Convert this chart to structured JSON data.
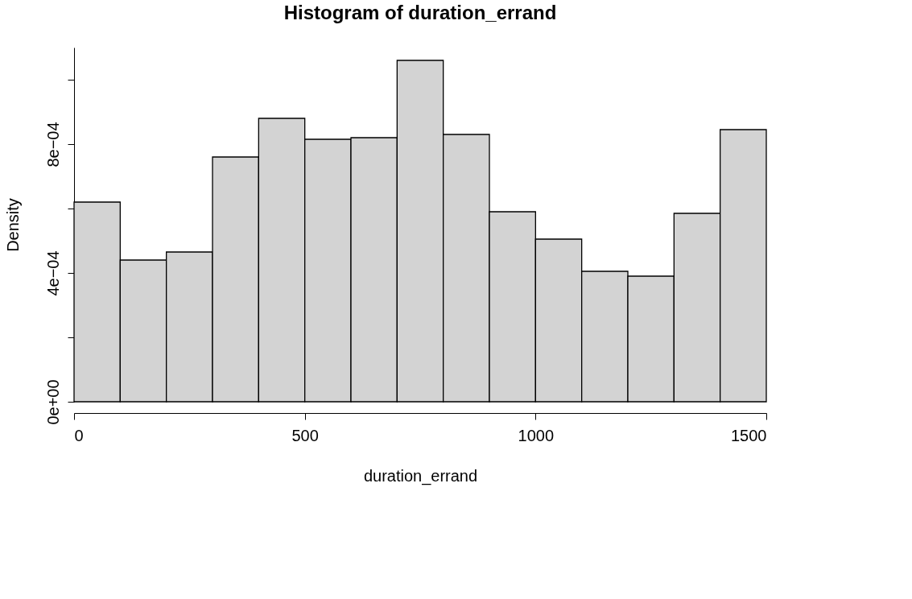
{
  "chart_data": {
    "type": "histogram",
    "title": "Histogram of duration_errand",
    "xlabel": "duration_errand",
    "ylabel": "Density",
    "bins": [
      0,
      100,
      200,
      300,
      400,
      500,
      600,
      700,
      800,
      900,
      1000,
      1100,
      1200,
      1300,
      1400,
      1500
    ],
    "values": [
      0.00062,
      0.00044,
      0.000465,
      0.00076,
      0.00088,
      0.000815,
      0.00082,
      0.00106,
      0.00083,
      0.00059,
      0.000505,
      0.000405,
      0.00039,
      0.000585,
      0.000845
    ],
    "color": "#d3d3d3",
    "xlim": [
      0,
      1500
    ],
    "xticks": [
      0,
      500,
      1000,
      1500
    ],
    "ylim": [
      0,
      0.0011
    ],
    "yticks": [
      {
        "value": 0,
        "label": "0e+00"
      },
      {
        "value": 0.0002,
        "label": null
      },
      {
        "value": 0.0004,
        "label": "4e−04"
      },
      {
        "value": 0.0006,
        "label": null
      },
      {
        "value": 0.0008,
        "label": "8e−04"
      },
      {
        "value": 0.001,
        "label": null
      }
    ],
    "grid": false
  }
}
